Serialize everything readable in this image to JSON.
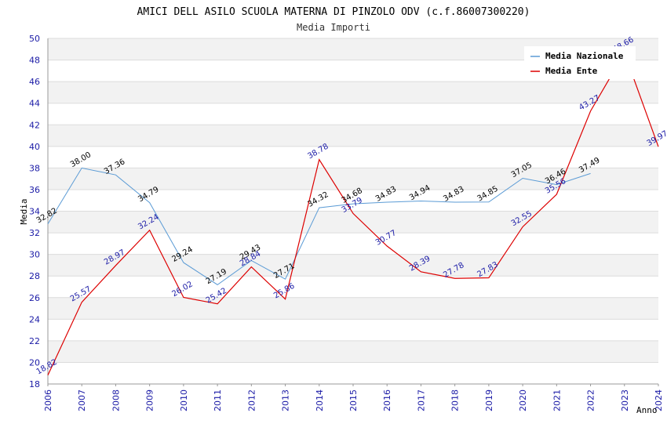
{
  "chart_data": {
    "type": "line",
    "title": "AMICI DELL ASILO SCUOLA MATERNA DI PINZOLO ODV (c.f.86007300220)",
    "subtitle": "Media Importi",
    "ylabel": "Media",
    "xlabel": "Anno",
    "ylim": [
      18,
      50
    ],
    "yticks": [
      18,
      20,
      22,
      24,
      26,
      28,
      30,
      32,
      34,
      36,
      38,
      40,
      42,
      44,
      46,
      48,
      50
    ],
    "x": [
      2006,
      2007,
      2008,
      2009,
      2010,
      2011,
      2012,
      2013,
      2014,
      2015,
      2016,
      2017,
      2018,
      2019,
      2020,
      2021,
      2022,
      2023,
      2024
    ],
    "grid": true,
    "legend_position": "top-right",
    "series": [
      {
        "name": "Media Nazionale",
        "color": "#5b9bd5",
        "label_color": "#000000",
        "x": [
          2006,
          2007,
          2008,
          2009,
          2010,
          2011,
          2012,
          2013,
          2014,
          2015,
          2016,
          2017,
          2018,
          2019,
          2020,
          2021,
          2022
        ],
        "values": [
          32.82,
          38.0,
          37.36,
          34.79,
          29.24,
          27.19,
          29.43,
          27.71,
          34.32,
          34.68,
          34.83,
          34.94,
          34.83,
          34.85,
          37.05,
          36.46,
          37.49
        ]
      },
      {
        "name": "Media Ente",
        "color": "#dd0000",
        "label_color": "#1a1aa6",
        "x": [
          2006,
          2007,
          2008,
          2009,
          2010,
          2011,
          2012,
          2013,
          2014,
          2015,
          2016,
          2017,
          2018,
          2019,
          2020,
          2021,
          2022,
          2023,
          2024
        ],
        "values": [
          18.82,
          25.57,
          28.97,
          32.24,
          26.02,
          25.42,
          28.84,
          25.86,
          38.78,
          33.79,
          30.77,
          28.39,
          27.78,
          27.83,
          32.55,
          35.56,
          43.27,
          48.66,
          39.97
        ]
      }
    ]
  }
}
